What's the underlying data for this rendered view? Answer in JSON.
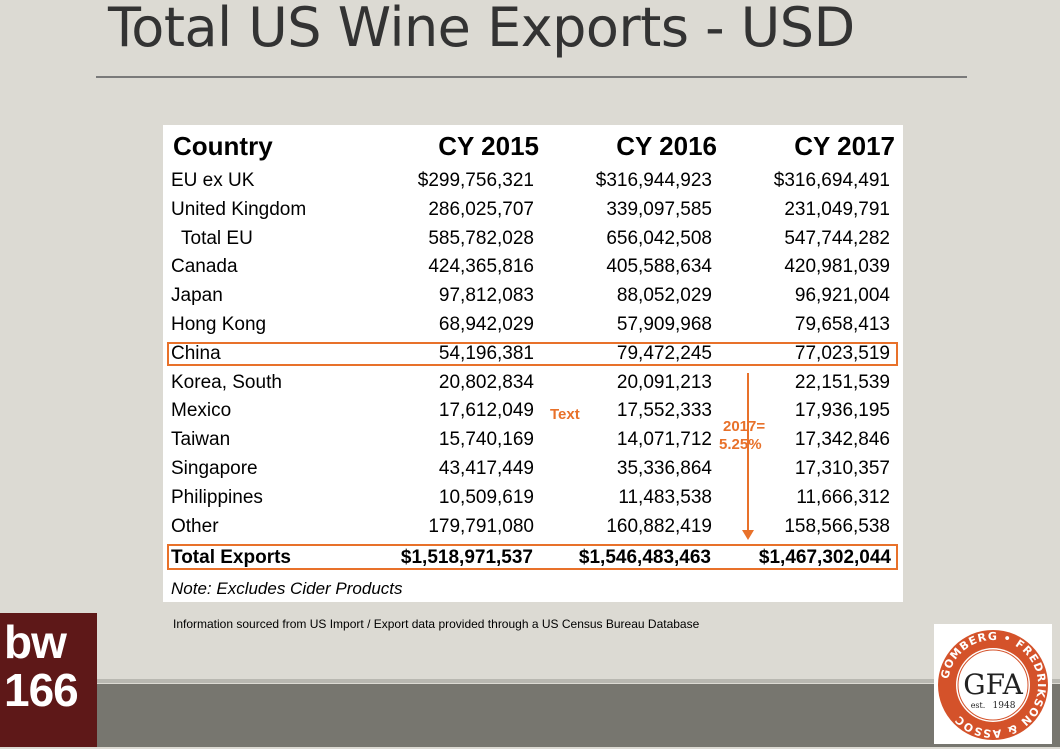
{
  "slide": {
    "title": "Total US Wine Exports - USD",
    "source_note": "Information sourced from US Import / Export data provided through a US Census Bureau Database"
  },
  "table": {
    "headers": [
      "Country",
      "CY 2015",
      "CY 2016",
      "CY 2017"
    ],
    "rows": [
      {
        "country": "EU ex UK",
        "y2015": "$299,756,321",
        "y2016": "$316,944,923",
        "y2017": "$316,694,491"
      },
      {
        "country": "United Kingdom",
        "y2015": "286,025,707",
        "y2016": "339,097,585",
        "y2017": "231,049,791"
      },
      {
        "country": "Total EU",
        "y2015": "585,782,028",
        "y2016": "656,042,508",
        "y2017": "547,744,282"
      },
      {
        "country": "Canada",
        "y2015": "424,365,816",
        "y2016": "405,588,634",
        "y2017": "420,981,039"
      },
      {
        "country": "Japan",
        "y2015": "97,812,083",
        "y2016": "88,052,029",
        "y2017": "96,921,004"
      },
      {
        "country": "Hong Kong",
        "y2015": "68,942,029",
        "y2016": "57,909,968",
        "y2017": "79,658,413"
      },
      {
        "country": "China",
        "y2015": "54,196,381",
        "y2016": "79,472,245",
        "y2017": "77,023,519"
      },
      {
        "country": "Korea, South",
        "y2015": "20,802,834",
        "y2016": "20,091,213",
        "y2017": "22,151,539"
      },
      {
        "country": "Mexico",
        "y2015": "17,612,049",
        "y2016": "17,552,333",
        "y2017": "17,936,195"
      },
      {
        "country": "Taiwan",
        "y2015": "15,740,169",
        "y2016": "14,071,712",
        "y2017": "17,342,846"
      },
      {
        "country": "Singapore",
        "y2015": "43,417,449",
        "y2016": "35,336,864",
        "y2017": "17,310,357"
      },
      {
        "country": "Philippines",
        "y2015": "10,509,619",
        "y2016": "11,483,538",
        "y2017": "11,666,312"
      },
      {
        "country": "Other",
        "y2015": "179,791,080",
        "y2016": "160,882,419",
        "y2017": "158,566,538"
      }
    ],
    "total": {
      "country": "Total Exports",
      "y2015": "$1,518,971,537",
      "y2016": "$1,546,483,463",
      "y2017": "$1,467,302,044"
    },
    "note": "Note: Excludes Cider Products"
  },
  "annotations": {
    "text_label": "Text",
    "china_share_line1": "2017=",
    "china_share_line2": "5.25%"
  },
  "logos": {
    "bw_line1": "bw",
    "bw_line2": "166",
    "gfa_ring_text": "GOMBERG • FREDRIKSON & ASSOC",
    "gfa_mark": "GFA",
    "gfa_est": "est.",
    "gfa_year": "1948"
  },
  "colors": {
    "accent": "#e8712a",
    "background": "#dcdad3",
    "bw_logo": "#5e1818",
    "gfa_logo": "#d4522a"
  }
}
